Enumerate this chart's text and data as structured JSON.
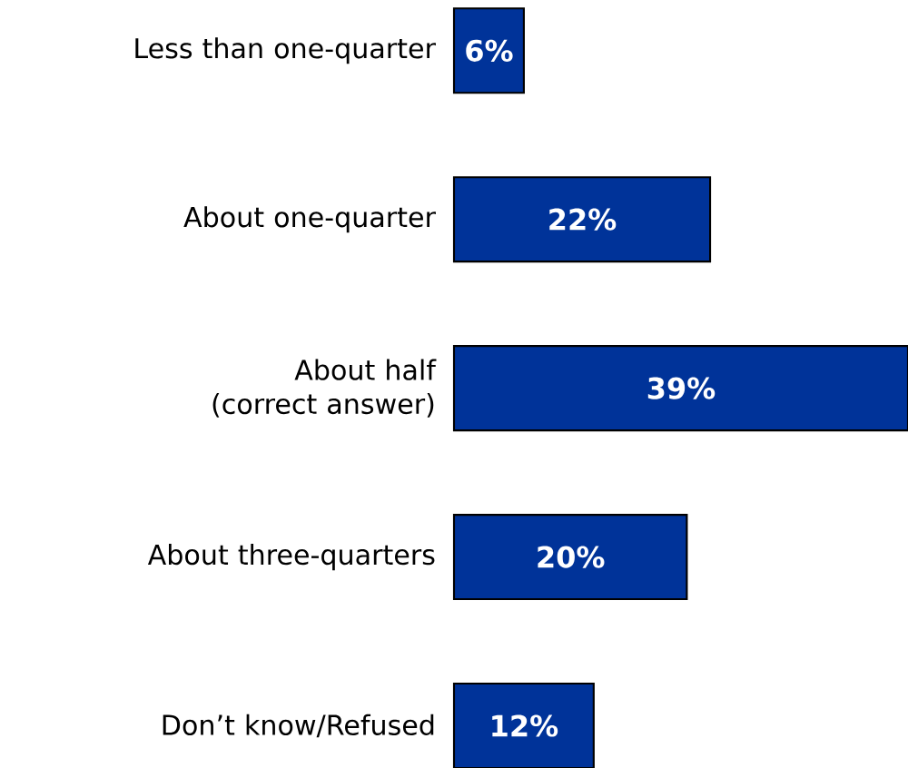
{
  "chart_data": {
    "type": "bar",
    "orientation": "horizontal",
    "categories": [
      "Less than one-quarter",
      "About one-quarter",
      "About half (correct answer)",
      "About three-quarters",
      "Don’t know/Refused"
    ],
    "values": [
      6,
      22,
      39,
      20,
      12
    ],
    "color": "#003399",
    "value_labels": [
      "6%",
      "22%",
      "39%",
      "20%",
      "12%"
    ]
  }
}
